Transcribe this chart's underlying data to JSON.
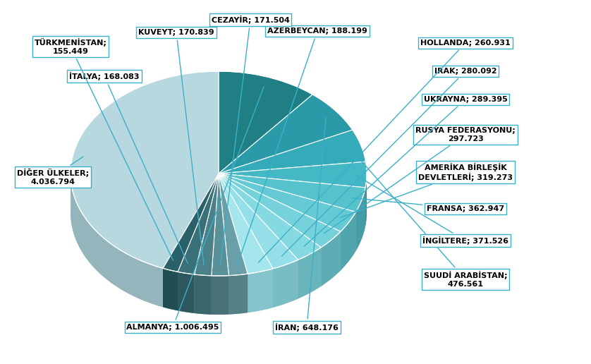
{
  "slices": [
    {
      "label": "ALMANYA",
      "value": 1006495,
      "color": "#1f7f85",
      "side_color": "#196870"
    },
    {
      "label": "İRAN",
      "value": 648176,
      "color": "#2a9aa8",
      "side_color": "#227d88"
    },
    {
      "label": "SUUDİ ARABİSTAN",
      "value": 476561,
      "color": "#35aab8",
      "side_color": "#2a8a96"
    },
    {
      "label": "İNGİLTERE",
      "value": 371526,
      "color": "#45b8c5",
      "side_color": "#38939e"
    },
    {
      "label": "FRANSA",
      "value": 362947,
      "color": "#55c2cc",
      "side_color": "#449da6"
    },
    {
      "label": "AMERİKA BİRLEŞİK DEVLETLERİ",
      "value": 319273,
      "color": "#65cad4",
      "side_color": "#50a5ad"
    },
    {
      "label": "RUSYA FEDERASYONU",
      "value": 297723,
      "color": "#75d2db",
      "side_color": "#5eadb5"
    },
    {
      "label": "UKRAYNA",
      "value": 289395,
      "color": "#85dae2",
      "side_color": "#6ab5bc"
    },
    {
      "label": "IRAK",
      "value": 280092,
      "color": "#95e0e8",
      "side_color": "#78bdc4"
    },
    {
      "label": "HOLLANDA",
      "value": 260931,
      "color": "#a5e6ec",
      "side_color": "#84c4ca"
    },
    {
      "label": "AZERBEYCAN",
      "value": 188199,
      "color": "#6a9fa8",
      "side_color": "#558088"
    },
    {
      "label": "CEZAYİR",
      "value": 171504,
      "color": "#5a9098",
      "side_color": "#487278"
    },
    {
      "label": "KUVEYT",
      "value": 170839,
      "color": "#4a8088",
      "side_color": "#3b666c"
    },
    {
      "label": "İTALYA",
      "value": 168083,
      "color": "#3a7078",
      "side_color": "#2e585e"
    },
    {
      "label": "TÜRKMENİSTAN",
      "value": 155449,
      "color": "#2a6068",
      "side_color": "#224d53"
    },
    {
      "label": "DİĞER ÜLKELER",
      "value": 4036794,
      "color": "#b8d8e0",
      "side_color": "#94b5bc"
    }
  ],
  "line_color": "#3ab0c8",
  "box_edge_color": "#3ab0c8",
  "background_color": "#ffffff",
  "font_size": 8,
  "font_family": "DejaVu Sans"
}
